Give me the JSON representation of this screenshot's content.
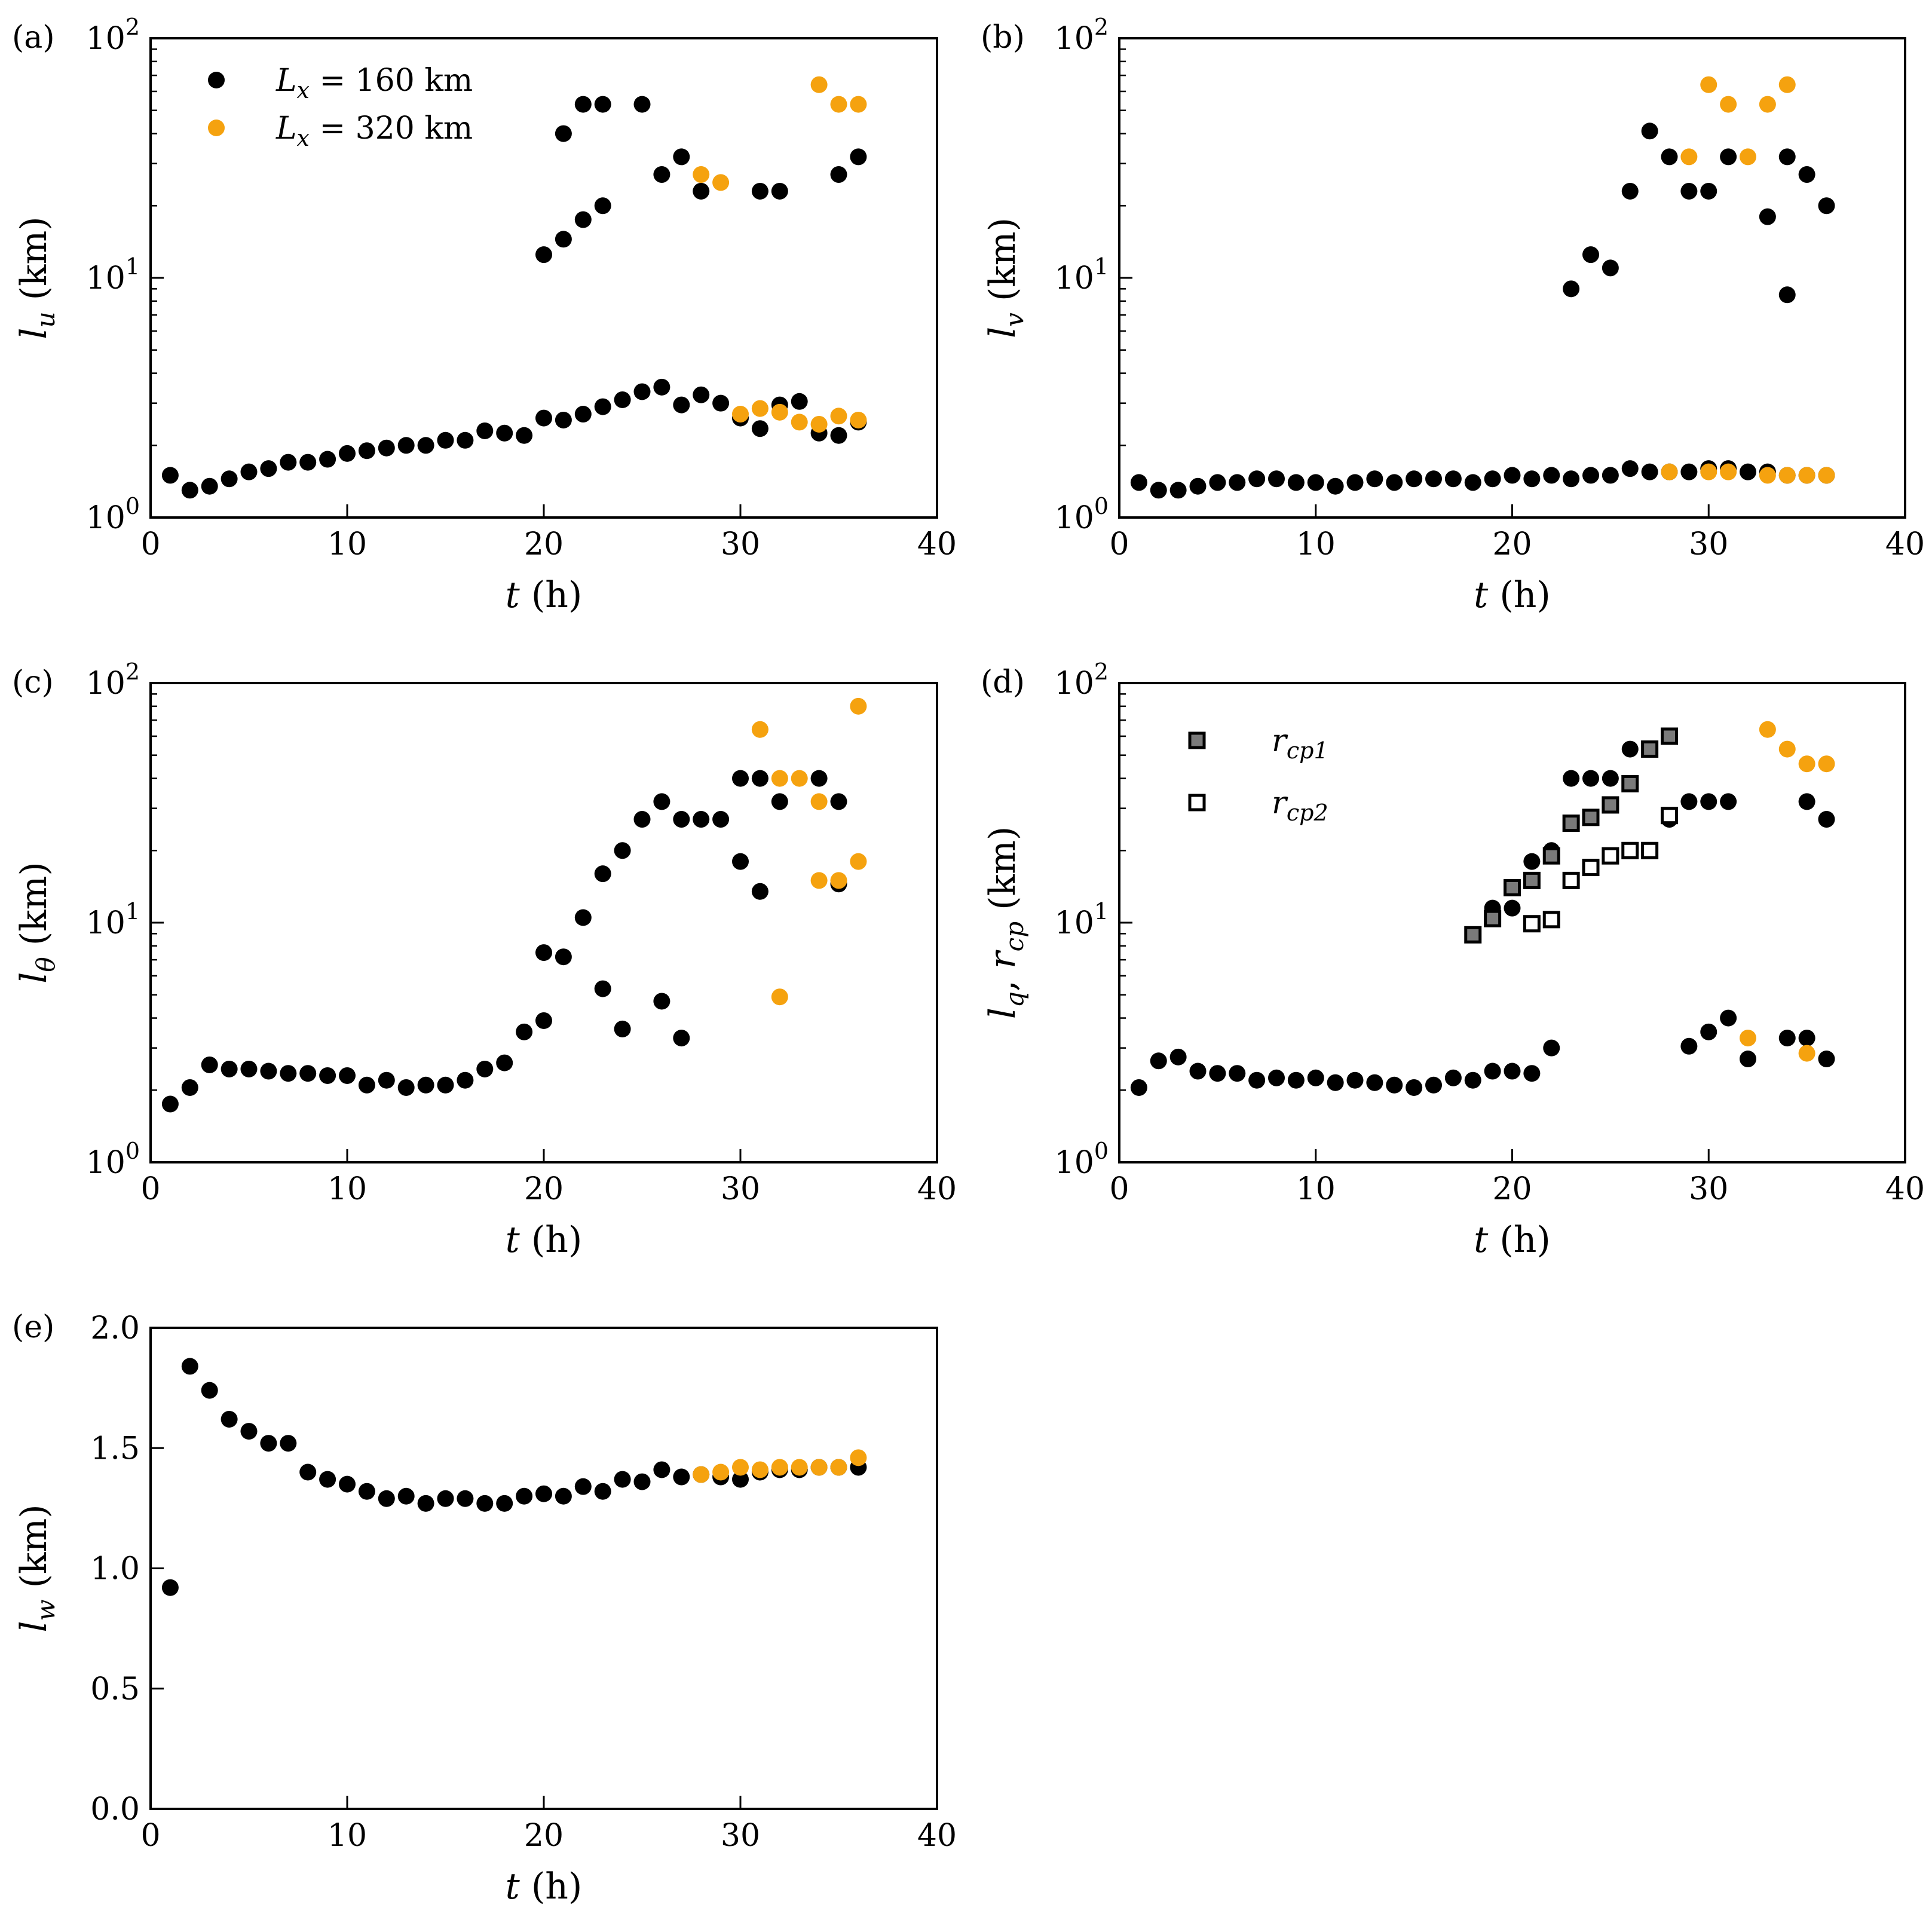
{
  "colors": {
    "black": "#000000",
    "orange": "#f5a20f",
    "square_fill": "#7a7a7a",
    "axes": "#000000"
  },
  "legend": {
    "entries": [
      {
        "label_var": "L",
        "label_sub": "x",
        "label_rest": " = 160 km",
        "color": "#000000",
        "marker": "circle"
      },
      {
        "label_var": "L",
        "label_sub": "x",
        "label_rest": " = 320 km",
        "color": "#f5a20f",
        "marker": "circle"
      }
    ],
    "rcp_entries": [
      {
        "label_var": "r",
        "label_sub": "cp1",
        "marker": "square-filled"
      },
      {
        "label_var": "r",
        "label_sub": "cp2",
        "marker": "square-open"
      }
    ]
  },
  "chart_data": [
    {
      "id": "a",
      "panel_label": "(a)",
      "type": "scatter",
      "xlabel_var": "t",
      "xlabel_unit": " (h)",
      "ylabel_var": "l",
      "ylabel_sub": "u",
      "ylabel_unit": " (km)",
      "yscale": "log",
      "xlim": [
        0,
        40
      ],
      "ylim": [
        1,
        100
      ],
      "xticks": [
        0,
        10,
        20,
        30,
        40
      ],
      "yticks": [
        1,
        10,
        100
      ],
      "legend": true,
      "series": [
        {
          "name": "L_x = 160 km",
          "color": "#000000",
          "marker": "circle",
          "x": [
            1,
            2,
            3,
            4,
            5,
            6,
            7,
            8,
            9,
            10,
            11,
            12,
            13,
            14,
            15,
            16,
            17,
            18,
            19,
            20,
            21,
            22,
            23,
            24,
            25,
            26,
            27,
            28,
            29,
            30,
            31,
            32,
            33,
            34,
            35,
            36,
            20,
            21,
            22,
            23,
            21,
            22,
            23,
            25,
            26,
            27,
            28,
            31,
            32,
            35,
            36
          ],
          "y": [
            1.5,
            1.3,
            1.35,
            1.45,
            1.55,
            1.6,
            1.7,
            1.7,
            1.75,
            1.85,
            1.9,
            1.95,
            2.0,
            2.0,
            2.1,
            2.1,
            2.3,
            2.25,
            2.2,
            2.6,
            2.55,
            2.7,
            2.9,
            3.1,
            3.35,
            3.5,
            2.95,
            3.25,
            3.0,
            2.6,
            2.35,
            2.95,
            3.05,
            2.25,
            2.2,
            2.5,
            12.5,
            14.5,
            17.5,
            20,
            40,
            53,
            53,
            53,
            27,
            32,
            23,
            23,
            23,
            27,
            32
          ]
        },
        {
          "name": "L_x = 320 km",
          "color": "#f5a20f",
          "marker": "circle",
          "x": [
            28,
            29,
            30,
            31,
            32,
            33,
            34,
            35,
            36,
            34,
            35,
            36
          ],
          "y": [
            27,
            25,
            2.7,
            2.85,
            2.75,
            2.5,
            2.45,
            2.65,
            2.55,
            64,
            53,
            53
          ]
        }
      ]
    },
    {
      "id": "b",
      "panel_label": "(b)",
      "type": "scatter",
      "xlabel_var": "t",
      "xlabel_unit": " (h)",
      "ylabel_var": "l",
      "ylabel_sub": "v",
      "ylabel_unit": " (km)",
      "yscale": "log",
      "xlim": [
        0,
        40
      ],
      "ylim": [
        1,
        100
      ],
      "xticks": [
        0,
        10,
        20,
        30,
        40
      ],
      "yticks": [
        1,
        10,
        100
      ],
      "legend": false,
      "series": [
        {
          "name": "L_x = 160 km",
          "color": "#000000",
          "marker": "circle",
          "x": [
            1,
            2,
            3,
            4,
            5,
            6,
            7,
            8,
            9,
            10,
            11,
            12,
            13,
            14,
            15,
            16,
            17,
            18,
            19,
            20,
            21,
            22,
            23,
            24,
            25,
            26,
            27,
            28,
            29,
            30,
            31,
            32,
            33,
            34,
            35,
            36,
            23,
            24,
            25,
            26,
            27,
            28,
            29,
            30,
            31,
            33,
            34,
            35,
            36,
            34
          ],
          "y": [
            1.4,
            1.3,
            1.3,
            1.35,
            1.4,
            1.4,
            1.45,
            1.45,
            1.4,
            1.4,
            1.35,
            1.4,
            1.45,
            1.4,
            1.45,
            1.45,
            1.45,
            1.4,
            1.45,
            1.5,
            1.45,
            1.5,
            1.45,
            1.5,
            1.5,
            1.6,
            1.55,
            1.55,
            1.55,
            1.6,
            1.6,
            1.55,
            1.55,
            1.5,
            1.5,
            1.5,
            9,
            12.5,
            11,
            23,
            41,
            32,
            23,
            23,
            32,
            18,
            32,
            27,
            20,
            8.5
          ]
        },
        {
          "name": "L_x = 320 km",
          "color": "#f5a20f",
          "marker": "circle",
          "x": [
            28,
            30,
            31,
            33,
            34,
            35,
            36,
            29,
            30,
            31,
            32,
            33,
            34
          ],
          "y": [
            1.55,
            1.55,
            1.55,
            1.5,
            1.5,
            1.5,
            1.5,
            32,
            64,
            53,
            32,
            53,
            64
          ]
        }
      ]
    },
    {
      "id": "c",
      "panel_label": "(c)",
      "type": "scatter",
      "xlabel_var": "t",
      "xlabel_unit": " (h)",
      "ylabel_var": "l",
      "ylabel_sub": "θ",
      "ylabel_unit": " (km)",
      "yscale": "log",
      "xlim": [
        0,
        40
      ],
      "ylim": [
        1,
        100
      ],
      "xticks": [
        0,
        10,
        20,
        30,
        40
      ],
      "yticks": [
        1,
        10,
        100
      ],
      "legend": false,
      "series": [
        {
          "name": "L_x = 160 km",
          "color": "#000000",
          "marker": "circle",
          "x": [
            1,
            2,
            3,
            4,
            5,
            6,
            7,
            8,
            9,
            10,
            11,
            12,
            13,
            14,
            15,
            16,
            17,
            18,
            19,
            20,
            21,
            22,
            23,
            24,
            25,
            26,
            27,
            28,
            29,
            30,
            31,
            32,
            34,
            35,
            20,
            23,
            24,
            26,
            27,
            30,
            31,
            35
          ],
          "y": [
            1.75,
            2.05,
            2.55,
            2.45,
            2.45,
            2.4,
            2.35,
            2.35,
            2.3,
            2.3,
            2.1,
            2.2,
            2.05,
            2.1,
            2.1,
            2.2,
            2.45,
            2.6,
            3.5,
            7.5,
            7.2,
            10.5,
            16,
            20,
            27,
            32,
            27,
            27,
            27,
            40,
            40,
            32,
            40,
            32,
            3.9,
            5.3,
            3.6,
            4.7,
            3.3,
            18,
            13.5,
            14.5
          ]
        },
        {
          "name": "L_x = 320 km",
          "color": "#f5a20f",
          "marker": "circle",
          "x": [
            31,
            32,
            33,
            34,
            36,
            34,
            35,
            36,
            32
          ],
          "y": [
            64,
            40,
            40,
            32,
            80,
            15,
            15,
            18,
            4.9
          ]
        }
      ]
    },
    {
      "id": "d",
      "panel_label": "(d)",
      "type": "scatter",
      "xlabel_var": "t",
      "xlabel_unit": " (h)",
      "ylabel_parts": [
        {
          "var": "l",
          "sub": "q"
        },
        {
          "sep": ", "
        },
        {
          "var": "r",
          "sub": "cp"
        }
      ],
      "ylabel_unit": " (km)",
      "yscale": "log",
      "xlim": [
        0,
        40
      ],
      "ylim": [
        1,
        100
      ],
      "xticks": [
        0,
        10,
        20,
        30,
        40
      ],
      "yticks": [
        1,
        10,
        100
      ],
      "legend": false,
      "rcp_legend": true,
      "series": [
        {
          "name": "L_x = 160 km",
          "color": "#000000",
          "marker": "circle",
          "x": [
            1,
            2,
            3,
            4,
            5,
            6,
            7,
            8,
            9,
            10,
            11,
            12,
            13,
            14,
            15,
            16,
            17,
            18,
            19,
            20,
            21,
            22,
            19,
            20,
            21,
            22,
            23,
            24,
            25,
            26,
            27,
            28,
            29,
            30,
            31,
            35,
            36,
            29,
            30,
            31,
            32,
            34,
            35,
            36
          ],
          "y": [
            2.05,
            2.65,
            2.75,
            2.4,
            2.35,
            2.35,
            2.2,
            2.25,
            2.2,
            2.25,
            2.15,
            2.2,
            2.15,
            2.1,
            2.05,
            2.1,
            2.25,
            2.2,
            2.4,
            2.4,
            2.35,
            3.0,
            11.5,
            11.5,
            18,
            20,
            40,
            40,
            40,
            53,
            53,
            27,
            32,
            32,
            32,
            32,
            27,
            3.05,
            3.5,
            4.0,
            2.7,
            3.3,
            3.3,
            2.7
          ]
        },
        {
          "name": "L_x = 320 km",
          "color": "#f5a20f",
          "marker": "circle",
          "x": [
            32,
            35,
            33,
            34,
            35,
            36
          ],
          "y": [
            3.3,
            2.85,
            64,
            53,
            46,
            46
          ]
        },
        {
          "name": "r_cp1",
          "color": "#7a7a7a",
          "marker": "square-filled",
          "x": [
            18,
            19,
            20,
            21,
            22,
            23,
            24,
            25,
            26,
            27,
            28
          ],
          "y": [
            8.9,
            10.4,
            14,
            15,
            19,
            26,
            27.5,
            31,
            38,
            53,
            60
          ]
        },
        {
          "name": "r_cp2",
          "color": "#ffffff",
          "marker": "square-open",
          "x": [
            21,
            22,
            23,
            24,
            25,
            26,
            27,
            28
          ],
          "y": [
            9.9,
            10.3,
            15,
            17,
            19,
            20,
            20,
            28
          ]
        }
      ]
    },
    {
      "id": "e",
      "panel_label": "(e)",
      "type": "scatter",
      "xlabel_var": "t",
      "xlabel_unit": " (h)",
      "ylabel_var": "l",
      "ylabel_sub": "w",
      "ylabel_unit": " (km)",
      "yscale": "linear",
      "xlim": [
        0,
        40
      ],
      "ylim": [
        0,
        2
      ],
      "xticks": [
        0,
        10,
        20,
        30,
        40
      ],
      "yticks": [
        0.0,
        0.5,
        1.0,
        1.5,
        2.0
      ],
      "ytick_labels": [
        "0.0",
        "0.5",
        "1.0",
        "1.5",
        "2.0"
      ],
      "legend": false,
      "series": [
        {
          "name": "L_x = 160 km",
          "color": "#000000",
          "marker": "circle",
          "x": [
            1,
            2,
            3,
            4,
            5,
            6,
            7,
            8,
            9,
            10,
            11,
            12,
            13,
            14,
            15,
            16,
            17,
            18,
            19,
            20,
            21,
            22,
            23,
            24,
            25,
            26,
            27,
            28,
            29,
            30,
            31,
            32,
            33,
            34,
            35,
            36
          ],
          "y": [
            0.92,
            1.84,
            1.74,
            1.62,
            1.57,
            1.52,
            1.52,
            1.4,
            1.37,
            1.35,
            1.32,
            1.29,
            1.3,
            1.27,
            1.29,
            1.29,
            1.27,
            1.27,
            1.3,
            1.31,
            1.3,
            1.34,
            1.32,
            1.37,
            1.36,
            1.41,
            1.38,
            1.39,
            1.38,
            1.37,
            1.4,
            1.41,
            1.41,
            1.42,
            1.42,
            1.42
          ]
        },
        {
          "name": "L_x = 320 km",
          "color": "#f5a20f",
          "marker": "circle",
          "x": [
            28,
            29,
            30,
            31,
            32,
            33,
            34,
            35,
            36
          ],
          "y": [
            1.39,
            1.4,
            1.42,
            1.41,
            1.42,
            1.42,
            1.42,
            1.42,
            1.46
          ]
        }
      ]
    }
  ]
}
